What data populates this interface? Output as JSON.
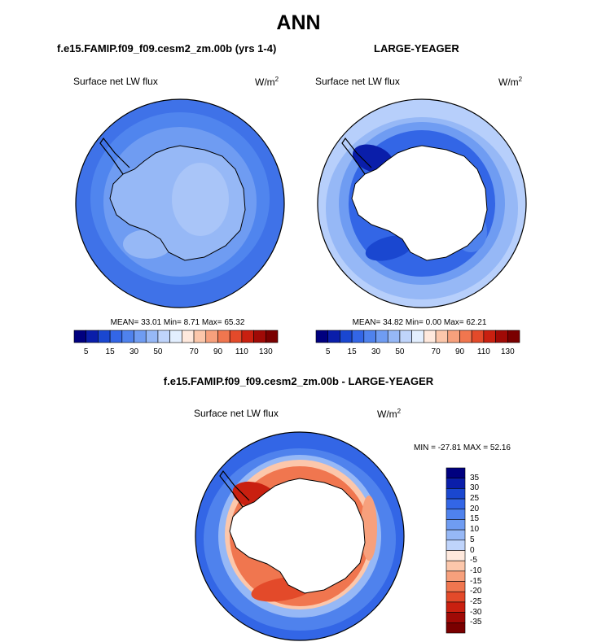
{
  "figure": {
    "title": "ANN"
  },
  "colors": {
    "diverging": [
      "#00007f",
      "#0a1eaa",
      "#1a47d0",
      "#3366e6",
      "#4f82ed",
      "#6f9cf2",
      "#96b8f6",
      "#bfd4fb",
      "#e3efff",
      "#ffe9dd",
      "#fcc7ab",
      "#f7a07c",
      "#f0764f",
      "#e34a2a",
      "#c92010",
      "#a00a06",
      "#7a0000"
    ],
    "land": "#ffffff",
    "coast": "#000000"
  },
  "chart_data": [
    {
      "type": "heatmap",
      "projection": "south-polar-stereographic",
      "title": "f.e15.FAMIP.f09_f09.cesm2_zm.00b (yrs 1-4)",
      "variable": "Surface net LW flux",
      "units": "W/m",
      "units_sup": "2",
      "stats": {
        "mean": "33.01",
        "min": "8.71",
        "max": "65.32"
      },
      "stats_text": "MEAN=  33.01  Min=    8.71  Max=  65.32",
      "colorbar_labels": [
        "5",
        "15",
        "30",
        "50",
        "70",
        "90",
        "110",
        "130"
      ],
      "land_masked": false
    },
    {
      "type": "heatmap",
      "projection": "south-polar-stereographic",
      "title": "LARGE-YEAGER",
      "variable": "Surface net LW flux",
      "units": "W/m",
      "units_sup": "2",
      "stats": {
        "mean": "34.82",
        "min": "0.00",
        "max": "62.21"
      },
      "stats_text": "MEAN=  34.82  Min=    0.00  Max=  62.21",
      "colorbar_labels": [
        "5",
        "15",
        "30",
        "50",
        "70",
        "90",
        "110",
        "130"
      ],
      "land_masked": true
    },
    {
      "type": "heatmap",
      "projection": "south-polar-stereographic",
      "title": "f.e15.FAMIP.f09_f09.cesm2_zm.00b - LARGE-YEAGER",
      "variable": "Surface net LW flux",
      "units": "W/m",
      "units_sup": "2",
      "stats": {
        "min": "-27.81",
        "max": "52.16"
      },
      "stats_text": "MIN = -27.81 MAX =  52.16",
      "colorbar_labels": [
        "35",
        "30",
        "25",
        "20",
        "15",
        "10",
        "5",
        "0",
        "-5",
        "-10",
        "-15",
        "-20",
        "-25",
        "-30",
        "-35"
      ],
      "land_masked": true
    }
  ]
}
